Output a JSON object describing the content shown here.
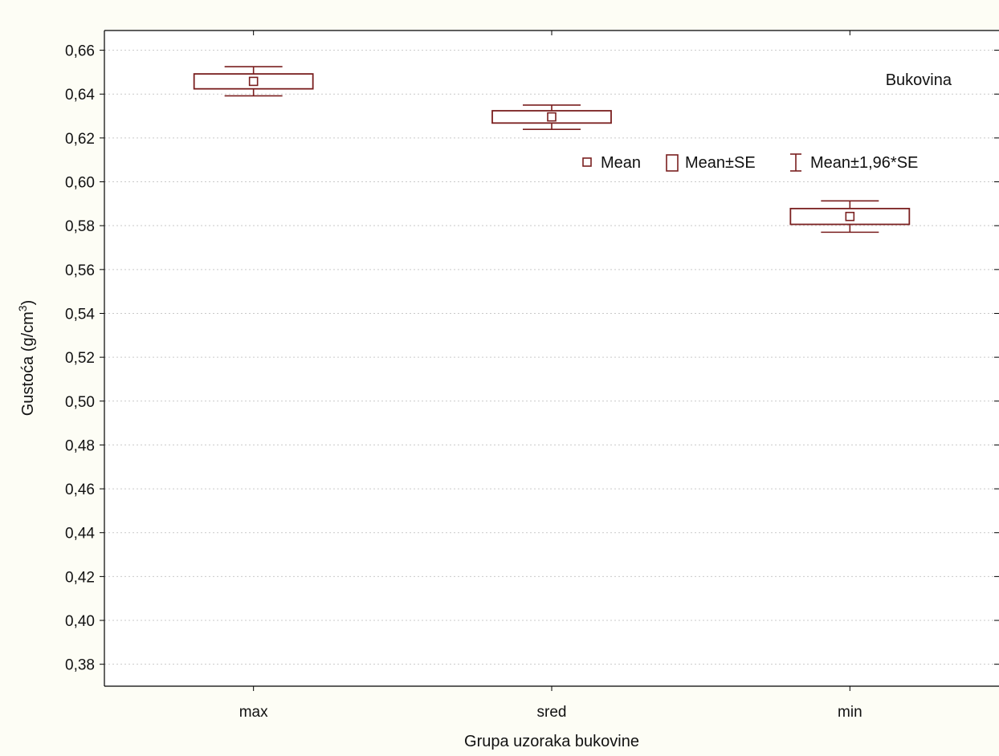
{
  "chart_data": {
    "type": "box",
    "title": "",
    "annotation": "Bukovina",
    "xlabel": "Grupa uzoraka bukovine",
    "ylabel": "Gustoća (g/cm",
    "ylabel_sup": "3",
    "ylabel_tail": ")",
    "categories": [
      "max",
      "sred",
      "min"
    ],
    "ylim": [
      0.37,
      0.669
    ],
    "yticks": [
      0.38,
      0.4,
      0.42,
      0.44,
      0.46,
      0.48,
      0.5,
      0.52,
      0.54,
      0.56,
      0.58,
      0.6,
      0.62,
      0.64,
      0.66
    ],
    "ytick_labels": [
      "0,38",
      "0,40",
      "0,42",
      "0,44",
      "0,46",
      "0,48",
      "0,50",
      "0,52",
      "0,54",
      "0,56",
      "0,58",
      "0,60",
      "0,62",
      "0,64",
      "0,66"
    ],
    "grid": true,
    "legend_position": "top-right",
    "legend": [
      "Mean",
      "Mean±SE",
      "Mean±1,96*SE"
    ],
    "series": [
      {
        "name": "Gustoća",
        "mean": [
          0.6458,
          0.6296,
          0.5842
        ],
        "se_low": [
          0.6424,
          0.6268,
          0.5806
        ],
        "se_high": [
          0.6492,
          0.6324,
          0.5878
        ],
        "ci_low": [
          0.6392,
          0.6239,
          0.577
        ],
        "ci_high": [
          0.6525,
          0.635,
          0.5913
        ]
      }
    ]
  },
  "colors": {
    "marker": "#7a1f1f",
    "background": "#fdfdf5",
    "plot_background": "#ffffff",
    "grid": "#c9c9c9",
    "axis": "#000000"
  }
}
